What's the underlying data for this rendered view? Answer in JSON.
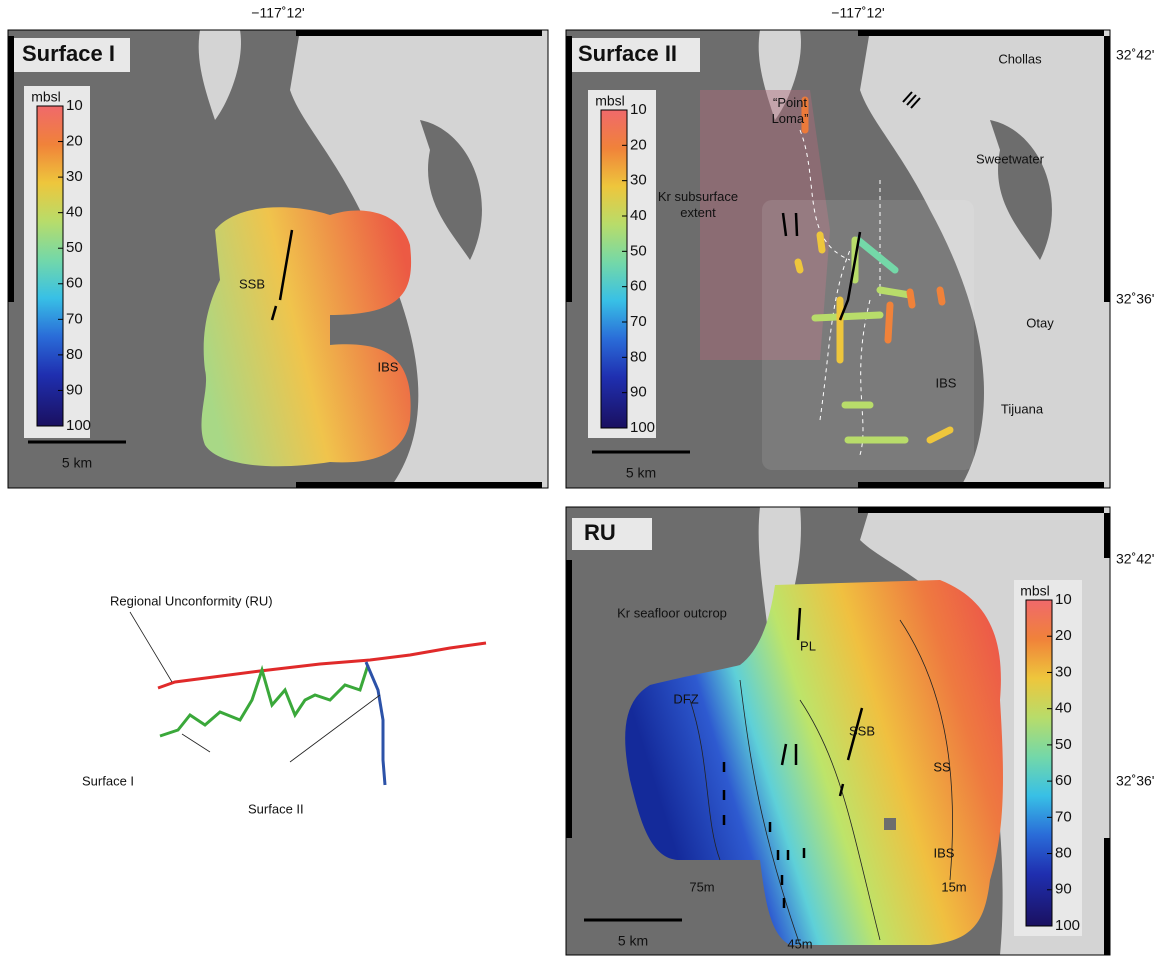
{
  "panels": [
    {
      "title": "Surface I",
      "top_coordinate": "−117˚12'",
      "colorbar": {
        "unit": "mbsl",
        "ticks": [
          10,
          20,
          30,
          40,
          50,
          60,
          70,
          80,
          90,
          100
        ]
      },
      "scale_bar": "5 km",
      "labels": [
        "SSB",
        "IBS"
      ]
    },
    {
      "title": "Surface II",
      "top_coordinate": "−117˚12'",
      "lat_labels": [
        "32˚42'",
        "32˚36'"
      ],
      "colorbar": {
        "unit": "mbsl",
        "ticks": [
          10,
          20,
          30,
          40,
          50,
          60,
          70,
          80,
          90,
          100
        ]
      },
      "scale_bar": "5 km",
      "labels": [
        "“Point Loma”",
        "Kr subsurface extent",
        "Chollas",
        "Sweetwater",
        "Otay",
        "Tijuana",
        "IBS"
      ]
    },
    {
      "title": "RU",
      "lat_labels": [
        "32˚42'",
        "32˚36'"
      ],
      "colorbar": {
        "unit": "mbsl",
        "ticks": [
          10,
          20,
          30,
          40,
          50,
          60,
          70,
          80,
          90,
          100
        ]
      },
      "scale_bar": "5 km",
      "labels": [
        "Kr seafloor outcrop",
        "PL",
        "DFZ",
        "SSB",
        "SS",
        "IBS",
        "75m",
        "45m",
        "15m"
      ]
    }
  ],
  "diagram": {
    "labels": [
      "Regional Unconformity (RU)",
      "Surface I",
      "Surface II"
    ]
  }
}
